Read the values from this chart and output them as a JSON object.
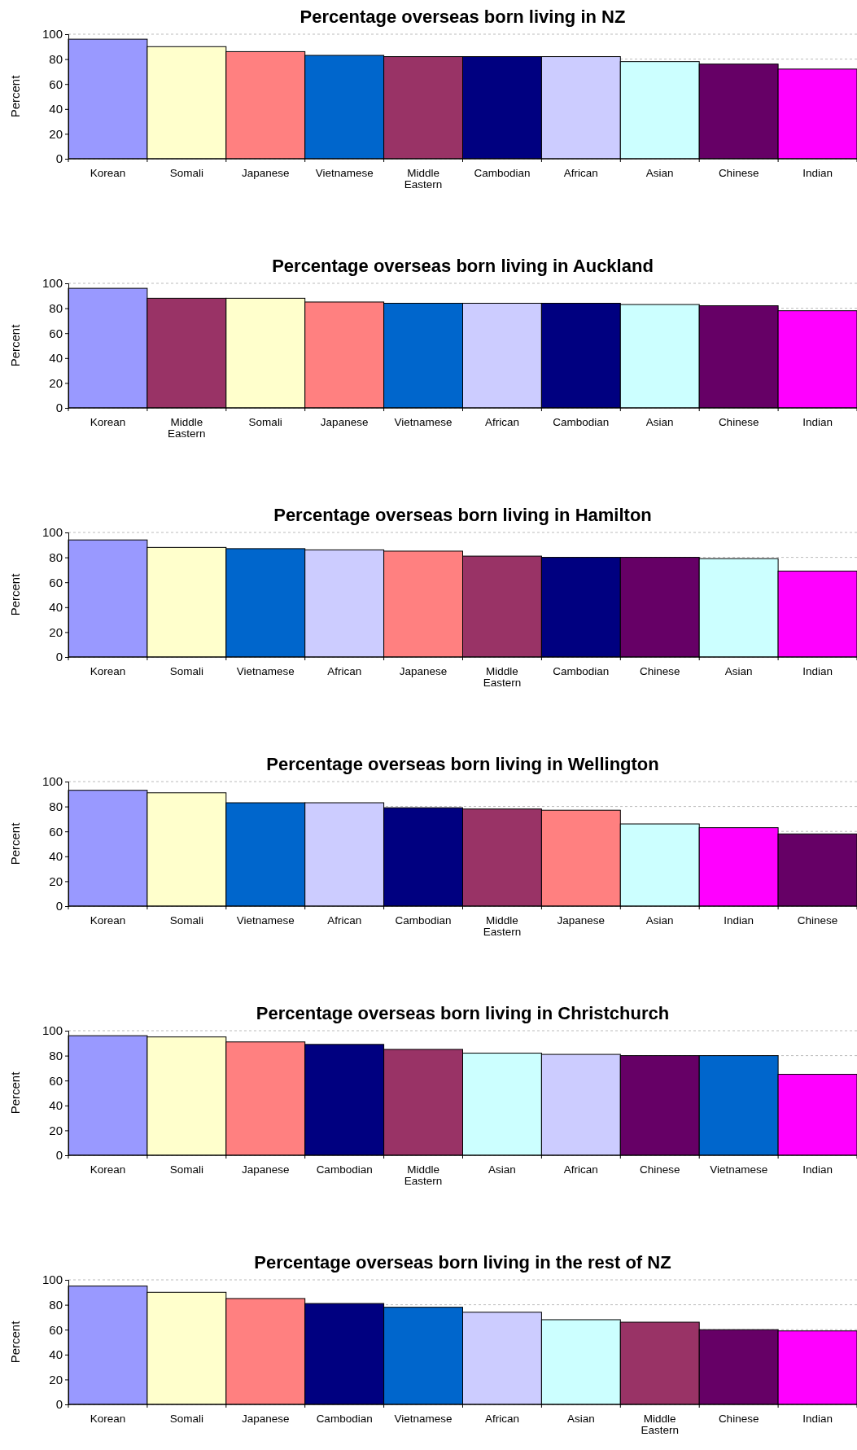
{
  "chart_data": [
    {
      "type": "bar",
      "title": "Percentage overseas born living in NZ",
      "ylabel": "Percent",
      "categories": [
        "Korean",
        "Somali",
        "Japanese",
        "Vietnamese",
        "Middle Eastern",
        "Cambodian",
        "African",
        "Asian",
        "Chinese",
        "Indian"
      ],
      "values": [
        96,
        90,
        86,
        83,
        82,
        82,
        82,
        78,
        76,
        72
      ],
      "colors": [
        "#9999ff",
        "#ffffcc",
        "#ff8080",
        "#0066cc",
        "#993366",
        "#000080",
        "#ccccff",
        "#ccffff",
        "#660066",
        "#ff00ff"
      ],
      "ylim": [
        0,
        100
      ],
      "yticks": [
        0,
        20,
        40,
        60,
        80,
        100
      ],
      "grid": "y"
    },
    {
      "type": "bar",
      "title": "Percentage overseas born living in Auckland",
      "ylabel": "Percent",
      "categories": [
        "Korean",
        "Middle Eastern",
        "Somali",
        "Japanese",
        "Vietnamese",
        "African",
        "Cambodian",
        "Asian",
        "Chinese",
        "Indian"
      ],
      "values": [
        96,
        88,
        88,
        85,
        84,
        84,
        84,
        83,
        82,
        78
      ],
      "colors": [
        "#9999ff",
        "#993366",
        "#ffffcc",
        "#ff8080",
        "#0066cc",
        "#ccccff",
        "#000080",
        "#ccffff",
        "#660066",
        "#ff00ff"
      ],
      "ylim": [
        0,
        100
      ],
      "yticks": [
        0,
        20,
        40,
        60,
        80,
        100
      ],
      "grid": "y"
    },
    {
      "type": "bar",
      "title": "Percentage overseas born living in Hamilton",
      "ylabel": "Percent",
      "categories": [
        "Korean",
        "Somali",
        "Vietnamese",
        "African",
        "Japanese",
        "Middle Eastern",
        "Cambodian",
        "Chinese",
        "Asian",
        "Indian"
      ],
      "values": [
        94,
        88,
        87,
        86,
        85,
        81,
        80,
        80,
        79,
        69
      ],
      "colors": [
        "#9999ff",
        "#ffffcc",
        "#0066cc",
        "#ccccff",
        "#ff8080",
        "#993366",
        "#000080",
        "#660066",
        "#ccffff",
        "#ff00ff"
      ],
      "ylim": [
        0,
        100
      ],
      "yticks": [
        0,
        20,
        40,
        60,
        80,
        100
      ],
      "grid": "y"
    },
    {
      "type": "bar",
      "title": "Percentage overseas born living in Wellington",
      "ylabel": "Percent",
      "categories": [
        "Korean",
        "Somali",
        "Vietnamese",
        "African",
        "Cambodian",
        "Middle Eastern",
        "Japanese",
        "Asian",
        "Indian",
        "Chinese"
      ],
      "values": [
        93,
        91,
        83,
        83,
        79,
        78,
        77,
        66,
        63,
        58
      ],
      "colors": [
        "#9999ff",
        "#ffffcc",
        "#0066cc",
        "#ccccff",
        "#000080",
        "#993366",
        "#ff8080",
        "#ccffff",
        "#ff00ff",
        "#660066"
      ],
      "ylim": [
        0,
        100
      ],
      "yticks": [
        0,
        20,
        40,
        60,
        80,
        100
      ],
      "grid": "y"
    },
    {
      "type": "bar",
      "title": "Percentage overseas born living in Christchurch",
      "ylabel": "Percent",
      "categories": [
        "Korean",
        "Somali",
        "Japanese",
        "Cambodian",
        "Middle Eastern",
        "Asian",
        "African",
        "Chinese",
        "Vietnamese",
        "Indian"
      ],
      "values": [
        96,
        95,
        91,
        89,
        85,
        82,
        81,
        80,
        80,
        65
      ],
      "colors": [
        "#9999ff",
        "#ffffcc",
        "#ff8080",
        "#000080",
        "#993366",
        "#ccffff",
        "#ccccff",
        "#660066",
        "#0066cc",
        "#ff00ff"
      ],
      "ylim": [
        0,
        100
      ],
      "yticks": [
        0,
        20,
        40,
        60,
        80,
        100
      ],
      "grid": "y"
    },
    {
      "type": "bar",
      "title": "Percentage overseas born living in the rest of NZ",
      "ylabel": "Percent",
      "categories": [
        "Korean",
        "Somali",
        "Japanese",
        "Cambodian",
        "Vietnamese",
        "African",
        "Asian",
        "Middle Eastern",
        "Chinese",
        "Indian"
      ],
      "values": [
        95,
        90,
        85,
        81,
        78,
        74,
        68,
        66,
        60,
        59
      ],
      "colors": [
        "#9999ff",
        "#ffffcc",
        "#ff8080",
        "#000080",
        "#0066cc",
        "#ccccff",
        "#ccffff",
        "#993366",
        "#660066",
        "#ff00ff"
      ],
      "ylim": [
        0,
        100
      ],
      "yticks": [
        0,
        20,
        40,
        60,
        80,
        100
      ],
      "grid": "y"
    }
  ]
}
